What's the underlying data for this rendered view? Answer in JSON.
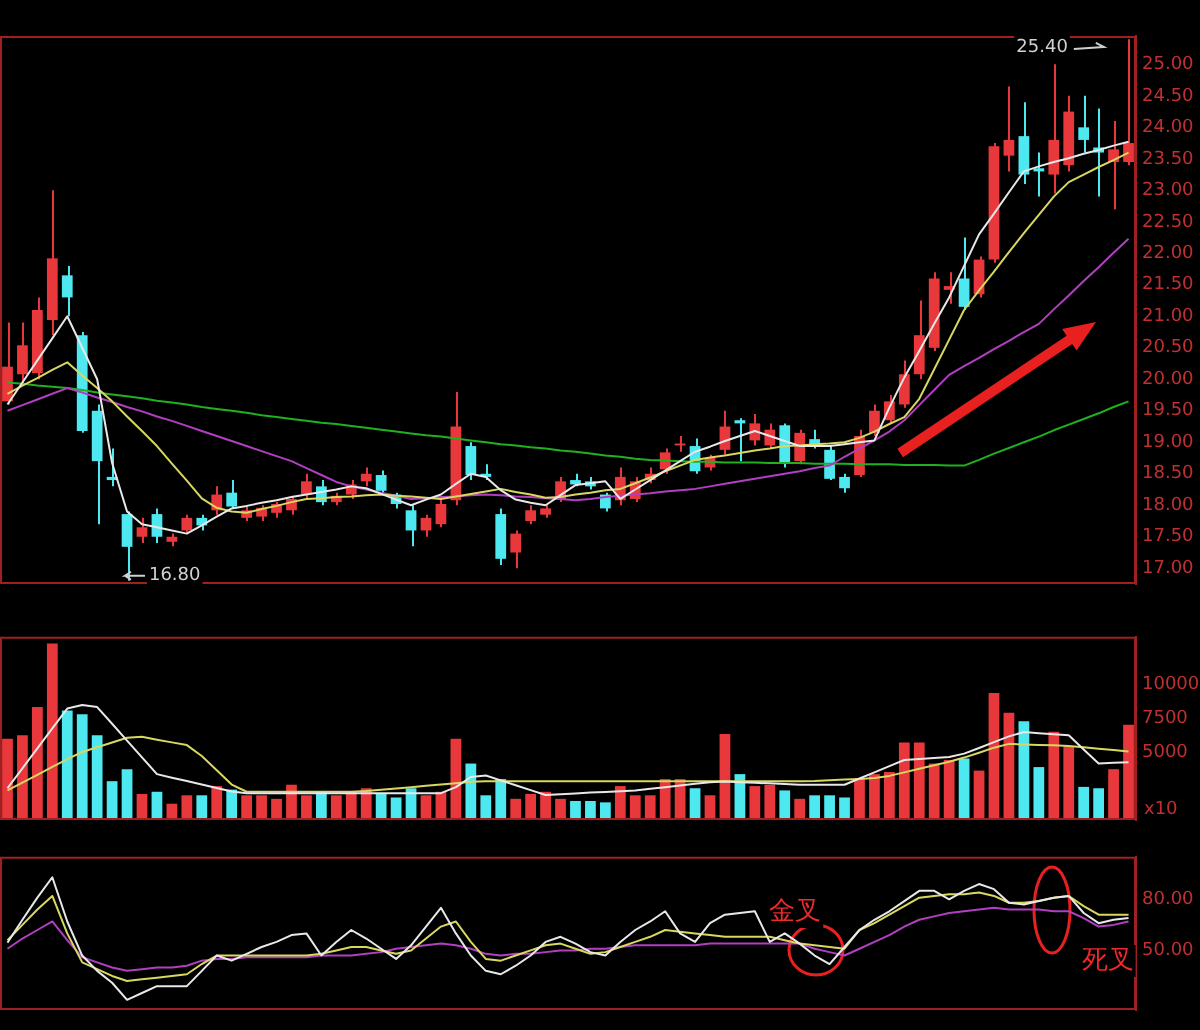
{
  "chart_data": [
    {
      "type": "candlestick",
      "tick_labels": "y",
      "ylim": [
        16.75,
        25.45
      ],
      "yticks": [
        {
          "value": 17,
          "label": "17.00"
        },
        {
          "value": 17.5,
          "label": "17.50"
        },
        {
          "value": 18,
          "label": "18.00"
        },
        {
          "value": 18.5,
          "label": "18.50"
        },
        {
          "value": 19,
          "label": "19.00"
        },
        {
          "value": 19.5,
          "label": "19.50"
        },
        {
          "value": 20,
          "label": "20.00"
        },
        {
          "value": 20.5,
          "label": "20.50"
        },
        {
          "value": 21,
          "label": "21.00"
        },
        {
          "value": 21.5,
          "label": "21.50"
        },
        {
          "value": 22,
          "label": "22.00"
        },
        {
          "value": 22.5,
          "label": "22.50"
        },
        {
          "value": 23,
          "label": "23.00"
        },
        {
          "value": 23.5,
          "label": "23.50"
        },
        {
          "value": 24,
          "label": "24.00"
        },
        {
          "value": 24.5,
          "label": "24.50"
        },
        {
          "value": 25,
          "label": "25.00"
        }
      ],
      "categories": [
        null,
        null,
        null,
        null,
        null,
        null,
        null,
        null,
        null,
        null,
        null,
        null,
        null,
        null,
        null,
        null,
        null,
        null,
        null,
        null,
        null,
        null,
        null,
        null,
        null,
        null,
        null,
        null,
        null,
        null,
        null,
        null,
        null,
        null,
        null,
        null,
        null,
        null,
        null,
        null,
        null,
        null,
        null,
        null,
        null,
        null,
        null,
        null,
        null,
        null,
        null,
        null,
        null,
        null,
        null,
        null,
        null,
        null,
        null,
        null,
        null,
        null,
        null,
        null,
        null,
        null,
        null,
        null,
        null,
        null,
        null,
        null,
        null,
        null,
        null,
        null
      ],
      "ohlc": [
        [
          19.65,
          20.9,
          19.6,
          20.2
        ],
        [
          20.08,
          20.9,
          19.9,
          20.54
        ],
        [
          20.1,
          21.3,
          20.0,
          21.1
        ],
        [
          20.94,
          23.0,
          20.7,
          21.92
        ],
        [
          21.65,
          21.8,
          21.0,
          21.3
        ],
        [
          20.7,
          20.75,
          19.15,
          19.18
        ],
        [
          19.5,
          19.6,
          17.7,
          18.7
        ],
        [
          18.45,
          18.9,
          18.3,
          18.4
        ],
        [
          17.86,
          17.9,
          16.8,
          17.34
        ],
        [
          17.5,
          17.8,
          17.4,
          17.65
        ],
        [
          17.86,
          17.95,
          17.4,
          17.5
        ],
        [
          17.42,
          17.55,
          17.35,
          17.5
        ],
        [
          17.6,
          17.85,
          17.55,
          17.8
        ],
        [
          17.8,
          17.85,
          17.6,
          17.68
        ],
        [
          17.92,
          18.3,
          17.85,
          18.17
        ],
        [
          18.2,
          18.4,
          17.95,
          17.98
        ],
        [
          17.8,
          18.0,
          17.75,
          17.92
        ],
        [
          17.82,
          18.0,
          17.75,
          17.96
        ],
        [
          17.88,
          18.05,
          17.8,
          18.02
        ],
        [
          17.92,
          18.15,
          17.85,
          18.1
        ],
        [
          18.17,
          18.5,
          18.1,
          18.38
        ],
        [
          18.3,
          18.4,
          18.0,
          18.05
        ],
        [
          18.05,
          18.2,
          18.0,
          18.15
        ],
        [
          18.17,
          18.4,
          18.1,
          18.33
        ],
        [
          18.38,
          18.6,
          18.3,
          18.5
        ],
        [
          18.48,
          18.55,
          18.2,
          18.23
        ],
        [
          18.17,
          18.2,
          17.95,
          18.02
        ],
        [
          17.92,
          18.0,
          17.35,
          17.6
        ],
        [
          17.6,
          17.85,
          17.5,
          17.8
        ],
        [
          17.7,
          18.1,
          17.65,
          18.02
        ],
        [
          18.08,
          19.8,
          18.0,
          19.25
        ],
        [
          18.94,
          19.0,
          18.4,
          18.48
        ],
        [
          18.5,
          18.65,
          18.4,
          18.45
        ],
        [
          17.86,
          17.95,
          17.05,
          17.15
        ],
        [
          17.25,
          17.6,
          17.0,
          17.55
        ],
        [
          17.75,
          18.0,
          17.7,
          17.92
        ],
        [
          17.85,
          18.0,
          17.8,
          17.95
        ],
        [
          18.1,
          18.45,
          18.05,
          18.38
        ],
        [
          18.4,
          18.5,
          18.3,
          18.33
        ],
        [
          18.38,
          18.45,
          18.25,
          18.3
        ],
        [
          18.17,
          18.2,
          17.9,
          17.95
        ],
        [
          18.08,
          18.6,
          18.0,
          18.45
        ],
        [
          18.1,
          18.45,
          18.05,
          18.38
        ],
        [
          18.4,
          18.6,
          18.35,
          18.5
        ],
        [
          18.57,
          18.9,
          18.5,
          18.84
        ],
        [
          18.95,
          19.1,
          18.85,
          18.98
        ],
        [
          18.94,
          19.06,
          18.5,
          18.54
        ],
        [
          18.6,
          18.8,
          18.55,
          18.75
        ],
        [
          18.88,
          19.5,
          18.8,
          19.25
        ],
        [
          19.35,
          19.38,
          18.7,
          19.3
        ],
        [
          19.03,
          19.45,
          18.95,
          19.3
        ],
        [
          18.95,
          19.3,
          18.9,
          19.2
        ],
        [
          19.27,
          19.3,
          18.6,
          18.66
        ],
        [
          18.7,
          19.2,
          18.65,
          19.15
        ],
        [
          19.05,
          19.2,
          18.9,
          18.95
        ],
        [
          18.88,
          18.95,
          18.4,
          18.42
        ],
        [
          18.45,
          18.5,
          18.2,
          18.27
        ],
        [
          18.48,
          19.2,
          18.45,
          19.1
        ],
        [
          19.15,
          19.6,
          19.1,
          19.5
        ],
        [
          19.35,
          19.75,
          19.3,
          19.65
        ],
        [
          19.6,
          20.3,
          19.55,
          20.08
        ],
        [
          20.08,
          21.25,
          20.0,
          20.7
        ],
        [
          20.5,
          21.7,
          20.45,
          21.6
        ],
        [
          21.42,
          21.7,
          21.2,
          21.48
        ],
        [
          21.6,
          22.25,
          21.1,
          21.15
        ],
        [
          21.35,
          21.95,
          21.3,
          21.9
        ],
        [
          21.9,
          23.75,
          21.85,
          23.7
        ],
        [
          23.55,
          24.65,
          23.3,
          23.8
        ],
        [
          23.86,
          24.4,
          23.1,
          23.25
        ],
        [
          23.35,
          23.6,
          22.9,
          23.3
        ],
        [
          23.25,
          25.0,
          22.95,
          23.8
        ],
        [
          23.4,
          24.5,
          23.3,
          24.25
        ],
        [
          24.0,
          24.5,
          23.6,
          23.8
        ],
        [
          23.68,
          24.3,
          22.9,
          23.6
        ],
        [
          23.45,
          24.1,
          22.7,
          23.65
        ],
        [
          23.45,
          25.4,
          23.4,
          23.75
        ]
      ],
      "colors": [
        "#e8383c",
        "#e8383c",
        "#e8383c",
        "#e8383c",
        "#4ee8f0",
        "#4ee8f0",
        "#4ee8f0",
        "#4ee8f0",
        "#4ee8f0",
        "#e8383c",
        "#4ee8f0",
        "#e8383c",
        "#e8383c",
        "#4ee8f0",
        "#e8383c",
        "#4ee8f0",
        "#e8383c",
        "#e8383c",
        "#e8383c",
        "#e8383c",
        "#e8383c",
        "#4ee8f0",
        "#e8383c",
        "#e8383c",
        "#e8383c",
        "#4ee8f0",
        "#4ee8f0",
        "#4ee8f0",
        "#e8383c",
        "#e8383c",
        "#e8383c",
        "#4ee8f0",
        "#4ee8f0",
        "#4ee8f0",
        "#e8383c",
        "#e8383c",
        "#e8383c",
        "#e8383c",
        "#4ee8f0",
        "#4ee8f0",
        "#4ee8f0",
        "#e8383c",
        "#e8383c",
        "#e8383c",
        "#e8383c",
        "#e8383c",
        "#4ee8f0",
        "#e8383c",
        "#e8383c",
        "#4ee8f0",
        "#e8383c",
        "#e8383c",
        "#4ee8f0",
        "#e8383c",
        "#4ee8f0",
        "#4ee8f0",
        "#4ee8f0",
        "#e8383c",
        "#e8383c",
        "#e8383c",
        "#e8383c",
        "#e8383c",
        "#e8383c",
        "#e8383c",
        "#4ee8f0",
        "#e8383c",
        "#e8383c",
        "#e8383c",
        "#4ee8f0",
        "#4ee8f0",
        "#e8383c",
        "#e8383c",
        "#4ee8f0",
        "#4ee8f0",
        "#e8383c",
        "#e8383c"
      ],
      "series": [
        {
          "type": "line",
          "color": "#e8e8e8",
          "values": [
            19.6,
            19.95,
            20.3,
            20.65,
            21.0,
            20.5,
            20.0,
            18.67,
            17.9,
            17.7,
            17.65,
            17.6,
            17.55,
            17.68,
            17.82,
            17.95,
            17.99,
            18.04,
            18.08,
            18.13,
            18.17,
            18.21,
            18.25,
            18.3,
            18.27,
            18.18,
            18.09,
            18.0,
            18.09,
            18.17,
            18.34,
            18.5,
            18.45,
            18.24,
            18.09,
            18.04,
            18.0,
            18.16,
            18.32,
            18.35,
            18.38,
            18.1,
            18.25,
            18.4,
            18.55,
            18.7,
            18.85,
            18.93,
            19.02,
            19.1,
            19.18,
            19.1,
            19.02,
            18.94,
            18.94,
            18.94,
            18.97,
            19.0,
            19.03,
            19.55,
            20.03,
            20.45,
            20.88,
            21.3,
            21.8,
            22.3,
            22.63,
            22.97,
            23.3,
            23.38,
            23.45,
            23.51,
            23.58,
            23.64,
            23.71,
            23.77
          ]
        },
        {
          "type": "line",
          "color": "#d8d860",
          "values": [
            19.77,
            19.9,
            20.02,
            20.15,
            20.27,
            20.06,
            19.86,
            19.65,
            19.41,
            19.18,
            18.94,
            18.66,
            18.39,
            18.11,
            17.96,
            17.9,
            17.88,
            17.94,
            17.99,
            18.05,
            18.1,
            18.11,
            18.13,
            18.14,
            18.16,
            18.17,
            18.15,
            18.14,
            18.12,
            18.1,
            18.14,
            18.18,
            18.22,
            18.26,
            18.21,
            18.17,
            18.12,
            18.13,
            18.17,
            18.2,
            18.24,
            18.26,
            18.35,
            18.44,
            18.54,
            18.63,
            18.72,
            18.76,
            18.79,
            18.83,
            18.87,
            18.9,
            18.94,
            18.95,
            18.97,
            18.98,
            19.0,
            19.07,
            19.17,
            19.29,
            19.4,
            19.69,
            20.16,
            20.63,
            21.1,
            21.41,
            21.71,
            22.02,
            22.32,
            22.61,
            22.9,
            23.13,
            23.25,
            23.37,
            23.48,
            23.6
          ]
        },
        {
          "type": "line",
          "color": "#b040c0",
          "values": [
            19.5,
            19.59,
            19.68,
            19.77,
            19.86,
            19.79,
            19.71,
            19.64,
            19.56,
            19.49,
            19.41,
            19.34,
            19.26,
            19.18,
            19.1,
            19.02,
            18.94,
            18.86,
            18.78,
            18.7,
            18.59,
            18.48,
            18.37,
            18.3,
            18.25,
            18.2,
            18.15,
            18.1,
            18.11,
            18.13,
            18.14,
            18.16,
            18.17,
            18.16,
            18.14,
            18.13,
            18.11,
            18.1,
            18.08,
            18.1,
            18.13,
            18.15,
            18.17,
            18.19,
            18.22,
            18.24,
            18.26,
            18.3,
            18.34,
            18.38,
            18.42,
            18.46,
            18.5,
            18.54,
            18.59,
            18.63,
            18.77,
            18.9,
            19.03,
            19.17,
            19.35,
            19.59,
            19.83,
            20.07,
            20.21,
            20.34,
            20.48,
            20.61,
            20.75,
            20.88,
            21.11,
            21.33,
            21.56,
            21.78,
            22.01,
            22.23
          ]
        },
        {
          "type": "line",
          "color": "#20b020",
          "values": [
            19.95,
            19.93,
            19.9,
            19.88,
            19.86,
            19.83,
            19.79,
            19.76,
            19.73,
            19.7,
            19.66,
            19.63,
            19.6,
            19.56,
            19.53,
            19.5,
            19.47,
            19.43,
            19.4,
            19.37,
            19.34,
            19.31,
            19.29,
            19.26,
            19.23,
            19.2,
            19.17,
            19.14,
            19.11,
            19.09,
            19.06,
            19.03,
            19.0,
            18.97,
            18.95,
            18.92,
            18.9,
            18.87,
            18.85,
            18.82,
            18.79,
            18.77,
            18.74,
            18.72,
            18.71,
            18.7,
            18.69,
            18.69,
            18.68,
            18.68,
            18.68,
            18.67,
            18.67,
            18.67,
            18.66,
            18.66,
            18.66,
            18.65,
            18.65,
            18.65,
            18.64,
            18.64,
            18.64,
            18.63,
            18.63,
            18.72,
            18.82,
            18.91,
            19.0,
            19.09,
            19.19,
            19.28,
            19.37,
            19.46,
            19.56,
            19.65
          ]
        }
      ],
      "annotations": [
        "25.40",
        "16.80"
      ]
    },
    {
      "type": "bar",
      "tick_labels": "y",
      "ylim": [
        0,
        13500
      ],
      "yticks": [
        5000,
        7500,
        10000
      ],
      "ylabel": "x10",
      "categories": [
        null,
        null,
        null,
        null,
        null,
        null,
        null,
        null,
        null,
        null,
        null,
        null,
        null,
        null,
        null,
        null,
        null,
        null,
        null,
        null,
        null,
        null,
        null,
        null,
        null,
        null,
        null,
        null,
        null,
        null,
        null,
        null,
        null,
        null,
        null,
        null,
        null,
        null,
        null,
        null,
        null,
        null,
        null,
        null,
        null,
        null,
        null,
        null,
        null,
        null,
        null,
        null,
        null,
        null,
        null,
        null,
        null,
        null,
        null,
        null,
        null,
        null,
        null,
        null,
        null,
        null,
        null,
        null,
        null,
        null,
        null,
        null,
        null,
        null,
        null,
        null
      ],
      "series": [
        {
          "type": "bar",
          "values": [
            5980,
            6240,
            8320,
            13000,
            8060,
            7800,
            6240,
            2860,
            3740,
            1920,
            2080,
            1200,
            1820,
            1820,
            2500,
            2240,
            1820,
            1820,
            1560,
            2600,
            1820,
            2080,
            1820,
            2080,
            2340,
            1920,
            1660,
            2340,
            1820,
            2080,
            5980,
            4160,
            1820,
            3016,
            1560,
            1920,
            2080,
            1560,
            1400,
            1400,
            1300,
            2500,
            1820,
            1820,
            3016,
            3016,
            2340,
            1820,
            6340,
            3380,
            2500,
            2600,
            2180,
            1560,
            1820,
            1820,
            1660,
            3016,
            3380,
            3536,
            5720,
            5720,
            4160,
            4420,
            4524,
            3640,
            9360,
            7900,
            7280,
            3900,
            6500,
            5460,
            2440,
            2340,
            3744,
            7020
          ],
          "colors": [
            "#e8383c",
            "#e8383c",
            "#e8383c",
            "#e8383c",
            "#4ee8f0",
            "#4ee8f0",
            "#4ee8f0",
            "#4ee8f0",
            "#4ee8f0",
            "#e8383c",
            "#4ee8f0",
            "#e8383c",
            "#e8383c",
            "#4ee8f0",
            "#e8383c",
            "#4ee8f0",
            "#e8383c",
            "#e8383c",
            "#e8383c",
            "#e8383c",
            "#e8383c",
            "#4ee8f0",
            "#e8383c",
            "#e8383c",
            "#e8383c",
            "#4ee8f0",
            "#4ee8f0",
            "#4ee8f0",
            "#e8383c",
            "#e8383c",
            "#e8383c",
            "#4ee8f0",
            "#4ee8f0",
            "#4ee8f0",
            "#e8383c",
            "#e8383c",
            "#e8383c",
            "#e8383c",
            "#4ee8f0",
            "#4ee8f0",
            "#4ee8f0",
            "#e8383c",
            "#e8383c",
            "#e8383c",
            "#e8383c",
            "#e8383c",
            "#4ee8f0",
            "#e8383c",
            "#e8383c",
            "#4ee8f0",
            "#e8383c",
            "#e8383c",
            "#4ee8f0",
            "#e8383c",
            "#4ee8f0",
            "#4ee8f0",
            "#4ee8f0",
            "#e8383c",
            "#e8383c",
            "#e8383c",
            "#e8383c",
            "#e8383c",
            "#e8383c",
            "#e8383c",
            "#4ee8f0",
            "#e8383c",
            "#e8383c",
            "#e8383c",
            "#4ee8f0",
            "#4ee8f0",
            "#e8383c",
            "#e8383c",
            "#4ee8f0",
            "#4ee8f0",
            "#e8383c",
            "#e8383c"
          ]
        },
        {
          "type": "line",
          "color": "#e8e8e8",
          "values": [
            2340,
            3810,
            5280,
            6750,
            8210,
            8480,
            8320,
            7090,
            5850,
            4620,
            3380,
            3120,
            2870,
            2610,
            2360,
            2100,
            1980,
            1980,
            1980,
            1980,
            1980,
            1980,
            1980,
            1980,
            1980,
            1980,
            1980,
            1980,
            1980,
            1980,
            2420,
            3170,
            3280,
            2920,
            2560,
            2200,
            1840,
            1900,
            1960,
            2020,
            2060,
            2120,
            2180,
            2300,
            2420,
            2550,
            2670,
            2790,
            2840,
            2790,
            2740,
            2700,
            2650,
            2600,
            2600,
            2600,
            2600,
            3060,
            3510,
            3970,
            4420,
            4490,
            4570,
            4640,
            4890,
            5310,
            5740,
            6160,
            6480,
            6400,
            6320,
            6240,
            5200,
            4160,
            4210,
            4260
          ]
        },
        {
          "type": "line",
          "color": "#d8d860",
          "values": [
            2180,
            2760,
            3330,
            3910,
            4480,
            5010,
            5360,
            5710,
            6060,
            6130,
            5920,
            5720,
            5520,
            4720,
            3660,
            2610,
            2080,
            2080,
            2080,
            2080,
            2080,
            2080,
            2080,
            2080,
            2130,
            2230,
            2320,
            2420,
            2520,
            2620,
            2710,
            2810,
            2860,
            2860,
            2860,
            2860,
            2860,
            2860,
            2860,
            2860,
            2860,
            2860,
            2860,
            2860,
            2860,
            2860,
            2860,
            2860,
            2860,
            2860,
            2860,
            2860,
            2860,
            2860,
            2880,
            2930,
            2980,
            3030,
            3100,
            3250,
            3510,
            3770,
            4030,
            4290,
            4600,
            4960,
            5330,
            5610,
            5570,
            5530,
            5500,
            5460,
            5360,
            5250,
            5150,
            5040
          ]
        }
      ]
    },
    {
      "type": "line",
      "tick_labels": "y",
      "ylim": [
        15,
        105
      ],
      "yticks": [
        {
          "value": 50,
          "label": "50.00"
        },
        {
          "value": 80,
          "label": "80.00"
        }
      ],
      "categories": [
        null,
        null,
        null,
        null,
        null,
        null,
        null,
        null,
        null,
        null,
        null,
        null,
        null,
        null,
        null,
        null,
        null,
        null,
        null,
        null,
        null,
        null,
        null,
        null,
        null,
        null,
        null,
        null,
        null,
        null,
        null,
        null,
        null,
        null,
        null,
        null,
        null,
        null,
        null,
        null,
        null,
        null,
        null,
        null,
        null,
        null,
        null,
        null,
        null,
        null,
        null,
        null,
        null,
        null,
        null,
        null,
        null,
        null,
        null,
        null,
        null,
        null,
        null,
        null,
        null,
        null,
        null,
        null,
        null,
        null,
        null,
        null,
        null,
        null,
        null,
        null
      ],
      "series": [
        {
          "color": "#e8e8e8",
          "values": [
            54.5,
            68,
            81,
            93,
            67,
            47,
            38,
            31,
            21,
            25,
            29,
            29,
            29,
            38,
            47,
            44,
            48,
            52,
            55,
            59,
            60,
            47,
            55,
            62,
            57,
            51,
            45,
            53,
            64,
            75,
            60,
            47,
            38,
            36,
            41,
            47,
            55,
            58,
            54,
            49,
            47,
            55,
            62,
            67,
            73,
            60,
            55,
            66,
            71,
            72,
            73,
            55,
            60,
            54,
            47,
            42,
            52,
            62,
            68,
            73,
            79,
            85,
            85,
            80,
            85,
            89,
            86,
            78,
            77,
            79,
            81,
            82,
            72,
            66,
            68,
            69
          ]
        },
        {
          "color": "#d8d860",
          "values": [
            56,
            65,
            74,
            82,
            60,
            43,
            39,
            35,
            32,
            33,
            34,
            35,
            36,
            42,
            47,
            47,
            47,
            47,
            47,
            47,
            47,
            48,
            50,
            52,
            52,
            50,
            48,
            50,
            57,
            64,
            67,
            55,
            45,
            44,
            47,
            50,
            53,
            54,
            51,
            48,
            49,
            52,
            55,
            58,
            62,
            61,
            60,
            59,
            58,
            58,
            58,
            58,
            56,
            54,
            53,
            52,
            51,
            62,
            66,
            71,
            76,
            81,
            82,
            83,
            83,
            84,
            82,
            78,
            78,
            79,
            81,
            82,
            76,
            71,
            71,
            71
          ]
        },
        {
          "color": "#b040c0",
          "values": [
            51,
            57,
            62,
            67,
            56,
            46,
            43,
            40,
            38,
            39,
            40,
            40,
            41,
            44,
            45,
            45,
            46,
            46,
            46,
            46,
            46,
            47,
            47,
            47,
            48,
            49,
            51,
            52,
            53,
            54,
            53,
            51,
            48,
            47,
            48,
            48,
            49,
            50,
            50,
            51,
            51,
            52,
            53,
            53,
            53,
            53,
            53,
            54,
            54,
            54,
            54,
            54,
            54,
            54,
            51,
            49,
            47,
            51,
            55,
            59,
            64,
            68,
            70,
            72,
            73,
            74,
            75,
            74,
            74,
            74,
            73,
            73,
            69,
            64,
            65,
            67
          ]
        }
      ],
      "annotations": [
        "金叉",
        "死叉"
      ]
    }
  ]
}
